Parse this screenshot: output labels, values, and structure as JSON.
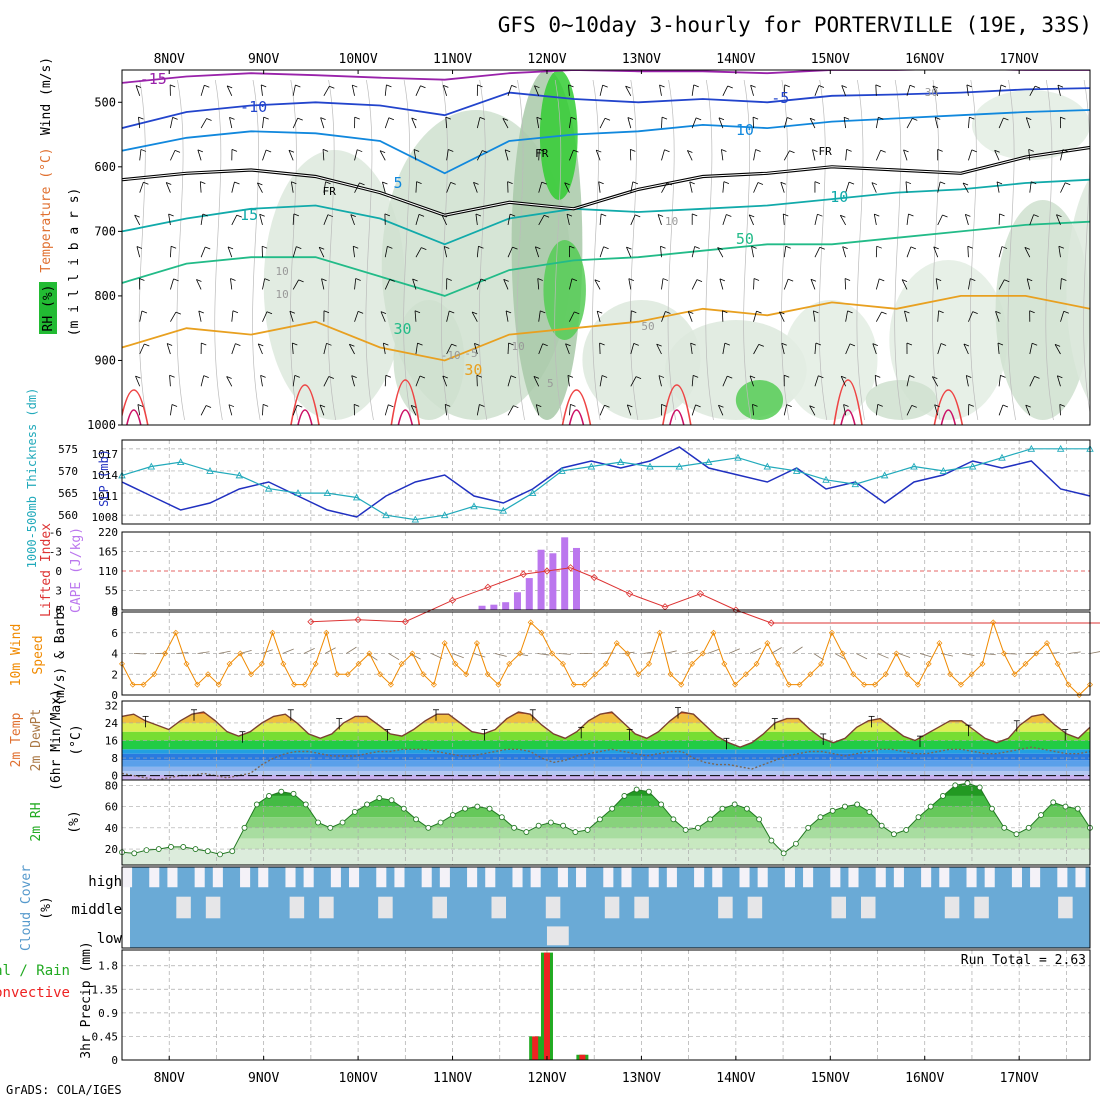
{
  "header": {
    "title": "GFS 0~10day 3-hourly for PORTERVILLE (19E, 33S)",
    "footer": "GrADS: COLA/IGES"
  },
  "colors": {
    "rh_green": "#33cc33",
    "temp_orange": "#e8a020",
    "wind_orange": "#f08a00",
    "cape_violet": "#bb77ee",
    "lifted_red": "#dd3333",
    "slp_blue": "#2030c0",
    "thick_cyan": "#22aabb",
    "cloud_blue": "#6aaad6",
    "precip_green": "#22aa22",
    "precip_red": "#ee2222"
  },
  "chart_data": [
    {
      "id": "upper-air",
      "type": "heatmap",
      "xlabels": [
        "8NOV",
        "9NOV",
        "10NOV",
        "11NOV",
        "12NOV",
        "13NOV",
        "14NOV",
        "15NOV",
        "16NOV",
        "17NOV"
      ],
      "xlabels_bottom": [
        "8NOV",
        "9NOV",
        "10NOV",
        "11NOV",
        "12NOV",
        "13NOV",
        "14NOV",
        "15NOV",
        "16NOV",
        "17NOV"
      ],
      "ylabel_parts": {
        "wind": "Wind (m/s)",
        "temp": "Temperature (°C)",
        "rh": "RH (%)",
        "mb": "(m i l l i b a r s)"
      },
      "yticks": [
        500,
        600,
        700,
        800,
        900,
        1000
      ],
      "ylim": [
        450,
        1000
      ],
      "freezing_label": "FR",
      "contour_labels": [
        "-15",
        "-10",
        "-5",
        "5",
        "10",
        "15",
        "10",
        "30",
        "50",
        "30",
        "10",
        "10",
        "-10",
        "-5",
        "5",
        "10",
        "30",
        "50",
        "10"
      ],
      "temperature_contours": [
        {
          "level": -15,
          "p": [
            470,
            460,
            455,
            458,
            462,
            465,
            455,
            450,
            452,
            452,
            455,
            450,
            450,
            448,
            450,
            450
          ]
        },
        {
          "level": -10,
          "p": [
            540,
            515,
            505,
            500,
            505,
            520,
            485,
            495,
            500,
            495,
            500,
            490,
            488,
            485,
            480,
            478
          ]
        },
        {
          "level": -5,
          "p": [
            575,
            555,
            545,
            548,
            560,
            610,
            560,
            550,
            545,
            535,
            540,
            530,
            525,
            520,
            515,
            512
          ]
        },
        {
          "level": 5,
          "p": [
            700,
            680,
            665,
            660,
            680,
            720,
            680,
            665,
            670,
            665,
            660,
            650,
            640,
            635,
            625,
            620
          ]
        },
        {
          "level": 10,
          "p": [
            780,
            750,
            740,
            740,
            770,
            800,
            760,
            745,
            740,
            730,
            720,
            720,
            710,
            700,
            690,
            685
          ]
        },
        {
          "level": 15,
          "p": [
            880,
            850,
            860,
            840,
            880,
            900,
            860,
            850,
            840,
            820,
            830,
            810,
            820,
            800,
            800,
            820
          ]
        }
      ],
      "freezing_level": [
        620,
        610,
        605,
        615,
        640,
        675,
        655,
        665,
        635,
        615,
        610,
        600,
        605,
        610,
        585,
        570
      ]
    },
    {
      "id": "slp-thickness",
      "type": "line",
      "left_label": "1000-500mb Thickness (dm)",
      "right_label": "SLP (mb)",
      "left_ticks": [
        "575",
        "570",
        "565",
        "560"
      ],
      "right_ticks": [
        "1017",
        "1014",
        "1011",
        "1008"
      ],
      "ylim_left": [
        558,
        577
      ],
      "ylim_right": [
        1007,
        1019
      ],
      "series": [
        {
          "name": "SLP (mb)",
          "values": [
            1013,
            1011,
            1009,
            1010,
            1012,
            1013,
            1011,
            1009,
            1008,
            1011,
            1013,
            1014,
            1011,
            1010,
            1012,
            1015,
            1016,
            1015,
            1016,
            1018,
            1015,
            1014,
            1013,
            1015,
            1012,
            1013,
            1010,
            1013,
            1014,
            1016,
            1015,
            1016,
            1012,
            1011
          ]
        },
        {
          "name": "1000-500mb Thickness (dm)",
          "values": [
            569,
            571,
            572,
            570,
            569,
            566,
            565,
            565,
            564,
            560,
            559,
            560,
            562,
            561,
            565,
            570,
            571,
            572,
            571,
            571,
            572,
            573,
            571,
            570,
            568,
            567,
            569,
            571,
            570,
            571,
            573,
            575,
            575,
            575
          ]
        }
      ]
    },
    {
      "id": "cape-li",
      "type": "bar",
      "left_label": "Lifted Index",
      "right_label": "CAPE (J/kg)",
      "left_ticks": [
        "-6",
        "-3",
        "0",
        "3",
        "6"
      ],
      "right_ticks": [
        "220",
        "165",
        "110",
        "55",
        "0"
      ],
      "ylim": [
        0,
        220
      ],
      "cape_bars": [
        {
          "t": 30.5,
          "value": 12
        },
        {
          "t": 31.5,
          "value": 15
        },
        {
          "t": 32.5,
          "value": 22
        },
        {
          "t": 33.5,
          "value": 50
        },
        {
          "t": 34.5,
          "value": 90
        },
        {
          "t": 35.5,
          "value": 170
        },
        {
          "t": 36.5,
          "value": 160
        },
        {
          "t": 37.5,
          "value": 205
        },
        {
          "t": 38.5,
          "value": 175
        }
      ],
      "lifted_index": [
        {
          "t": 16,
          "value": 7.8
        },
        {
          "t": 20,
          "value": 7.5
        },
        {
          "t": 24,
          "value": 7.8
        },
        {
          "t": 28,
          "value": 4.5
        },
        {
          "t": 31,
          "value": 2.5
        },
        {
          "t": 34,
          "value": 0.5
        },
        {
          "t": 36,
          "value": 0.0
        },
        {
          "t": 38,
          "value": -0.5
        },
        {
          "t": 40,
          "value": 1.0
        },
        {
          "t": 43,
          "value": 3.5
        },
        {
          "t": 46,
          "value": 5.5
        },
        {
          "t": 49,
          "value": 3.5
        },
        {
          "t": 52,
          "value": 6.0
        },
        {
          "t": 55,
          "value": 8.0
        },
        {
          "t": 87,
          "value": 8.0
        },
        {
          "t": 88,
          "value": 6.5
        },
        {
          "t": 89,
          "value": 8.0
        }
      ]
    },
    {
      "id": "wind10m",
      "type": "line",
      "ylabel_parts": {
        "a": "10m Wind",
        "b": "Speed",
        "c": "(m/s) & Barbs"
      },
      "yticks": [
        "8",
        "6",
        "4",
        "2",
        "0"
      ],
      "ylim": [
        0,
        8
      ],
      "series": [
        {
          "name": "10m Wind Speed",
          "values": [
            3,
            1,
            1,
            2,
            4,
            6,
            3,
            1,
            2,
            1,
            3,
            4,
            2,
            3,
            6,
            3,
            1,
            1,
            3,
            6,
            2,
            2,
            3,
            4,
            2,
            1,
            3,
            4,
            2,
            1,
            5,
            3,
            2,
            5,
            2,
            1,
            3,
            4,
            7,
            6,
            4,
            3,
            1,
            1,
            2,
            3,
            5,
            4,
            2,
            3,
            6,
            2,
            1,
            3,
            4,
            6,
            3,
            1,
            2,
            3,
            5,
            3,
            1,
            1,
            2,
            3,
            6,
            4,
            2,
            1,
            1,
            2,
            4,
            2,
            1,
            3,
            5,
            2,
            1,
            2,
            3,
            7,
            4,
            2,
            3,
            4,
            5,
            3,
            1,
            0,
            1
          ]
        }
      ]
    },
    {
      "id": "temperature",
      "type": "area",
      "ylabel_parts": {
        "a": "2m Temp",
        "b": "2m DewPt",
        "c": "(6hr Min/Max)",
        "d": "(°C)"
      },
      "yticks": [
        "32",
        "24",
        "16",
        "8",
        "0"
      ],
      "ylim": [
        -2,
        34
      ],
      "series": [
        {
          "name": "2m Temp",
          "values": [
            27,
            28,
            25,
            23,
            21,
            25,
            28,
            29,
            25,
            20,
            18,
            20,
            24,
            27,
            28,
            24,
            19,
            17,
            19,
            24,
            27,
            27,
            23,
            19,
            18,
            21,
            25,
            28,
            28,
            24,
            20,
            19,
            21,
            26,
            29,
            28,
            23,
            19,
            17,
            20,
            25,
            28,
            29,
            24,
            19,
            17,
            20,
            25,
            29,
            28,
            23,
            18,
            15,
            13,
            15,
            19,
            24,
            26,
            26,
            21,
            17,
            15,
            17,
            22,
            25,
            26,
            22,
            18,
            16,
            19,
            22,
            25,
            25,
            21,
            17,
            15,
            17,
            23,
            27,
            28,
            23,
            19,
            17,
            22
          ]
        },
        {
          "name": "2m DewPt",
          "values": [
            1,
            0,
            -1,
            -2,
            -1,
            0,
            0,
            1,
            0,
            -1,
            0,
            1,
            5,
            8,
            10,
            11,
            11,
            10,
            9,
            9,
            9,
            10,
            11,
            11,
            12,
            12,
            12,
            11,
            10,
            9,
            9,
            10,
            11,
            12,
            12,
            11,
            8,
            6,
            7,
            9,
            10,
            11,
            12,
            11,
            10,
            9,
            10,
            11,
            11,
            8,
            6,
            5,
            5,
            4,
            3,
            5,
            7,
            9,
            10,
            11,
            11,
            10,
            9,
            10,
            11,
            12,
            12,
            11,
            10,
            10,
            11,
            12,
            12,
            11,
            10,
            10,
            11,
            12,
            13,
            12,
            11,
            10,
            10,
            11
          ]
        }
      ]
    },
    {
      "id": "rh2m",
      "type": "area",
      "ylabel_parts": {
        "a": "2m RH",
        "b": "(%)"
      },
      "yticks": [
        "80",
        "60",
        "40",
        "20"
      ],
      "ylim": [
        5,
        85
      ],
      "series": [
        {
          "name": "2m RH",
          "values": [
            17,
            16,
            19,
            20,
            22,
            22,
            20,
            18,
            15,
            18,
            40,
            62,
            70,
            74,
            72,
            62,
            45,
            40,
            45,
            55,
            62,
            68,
            66,
            58,
            48,
            40,
            45,
            52,
            58,
            60,
            58,
            50,
            40,
            36,
            42,
            45,
            42,
            36,
            38,
            48,
            58,
            70,
            76,
            74,
            62,
            48,
            38,
            40,
            48,
            58,
            62,
            58,
            48,
            28,
            16,
            25,
            40,
            50,
            56,
            60,
            62,
            55,
            42,
            34,
            38,
            50,
            60,
            70,
            80,
            82,
            78,
            58,
            40,
            34,
            40,
            52,
            64,
            60,
            58,
            40
          ]
        }
      ]
    },
    {
      "id": "cloud",
      "type": "heatmap",
      "ylabel_parts": {
        "a": "Cloud Cover",
        "b": "(%)"
      },
      "row_labels": [
        "high",
        "middle",
        "low"
      ]
    },
    {
      "id": "precip",
      "type": "bar",
      "ylabel_parts": {
        "a": "Total / Rain",
        "b": "Convective",
        "c": "3hr Precip (mm)"
      },
      "yticks": [
        "1.8",
        "1.35",
        "0.9",
        "0.45",
        "0"
      ],
      "ylim": [
        0,
        2.1
      ],
      "run_total_label": "Run Total = 2.63",
      "bars": [
        {
          "t": 35.0,
          "total": 0.45,
          "convective": 0.45
        },
        {
          "t": 36.0,
          "total": 2.05,
          "convective": 2.05
        },
        {
          "t": 39.0,
          "total": 0.1,
          "convective": 0.1
        }
      ]
    }
  ]
}
